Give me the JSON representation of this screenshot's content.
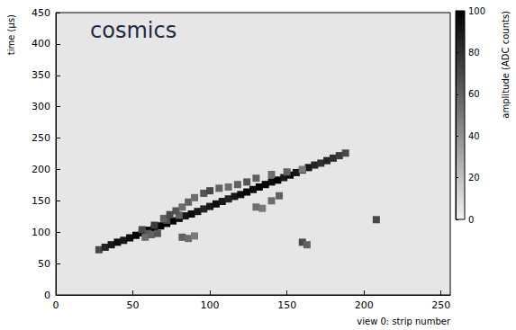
{
  "chart_data": {
    "type": "heatmap",
    "annotation": "cosmics",
    "x_label": "view 0: strip number",
    "y_label": "time (µs)",
    "xlim": [
      0,
      256
    ],
    "xticks": [
      0,
      50,
      100,
      150,
      200,
      250
    ],
    "ylim": [
      0,
      450
    ],
    "yticks": [
      0,
      50,
      100,
      150,
      200,
      250,
      300,
      350,
      400,
      450
    ],
    "marker": "square",
    "grid": false,
    "colorbar": {
      "label": "amplitude (ADC counts)",
      "range": [
        0,
        100
      ],
      "ticks": [
        0,
        20,
        40,
        60,
        80,
        100
      ]
    },
    "cells": [
      [
        28,
        72,
        70
      ],
      [
        32,
        76,
        85
      ],
      [
        36,
        80,
        90
      ],
      [
        40,
        84,
        95
      ],
      [
        44,
        87,
        90
      ],
      [
        48,
        91,
        95
      ],
      [
        52,
        95,
        100
      ],
      [
        56,
        99,
        100
      ],
      [
        60,
        103,
        100
      ],
      [
        64,
        106,
        100
      ],
      [
        68,
        110,
        100
      ],
      [
        72,
        114,
        100
      ],
      [
        76,
        118,
        100
      ],
      [
        80,
        122,
        95
      ],
      [
        84,
        126,
        90
      ],
      [
        88,
        129,
        95
      ],
      [
        92,
        133,
        90
      ],
      [
        96,
        137,
        85
      ],
      [
        100,
        141,
        90
      ],
      [
        104,
        145,
        95
      ],
      [
        108,
        149,
        90
      ],
      [
        112,
        153,
        85
      ],
      [
        116,
        157,
        90
      ],
      [
        120,
        160,
        95
      ],
      [
        124,
        164,
        100
      ],
      [
        128,
        168,
        95
      ],
      [
        132,
        172,
        100
      ],
      [
        136,
        176,
        100
      ],
      [
        140,
        180,
        95
      ],
      [
        144,
        183,
        100
      ],
      [
        148,
        187,
        90
      ],
      [
        152,
        191,
        95
      ],
      [
        156,
        195,
        90
      ],
      [
        160,
        199,
        85
      ],
      [
        164,
        203,
        90
      ],
      [
        168,
        207,
        85
      ],
      [
        172,
        210,
        80
      ],
      [
        176,
        214,
        85
      ],
      [
        180,
        218,
        80
      ],
      [
        184,
        222,
        75
      ],
      [
        188,
        226,
        70
      ],
      [
        56,
        104,
        70
      ],
      [
        60,
        98,
        65
      ],
      [
        64,
        111,
        75
      ],
      [
        72,
        119,
        70
      ],
      [
        80,
        127,
        60
      ],
      [
        58,
        92,
        55
      ],
      [
        62,
        96,
        60
      ],
      [
        66,
        98,
        65
      ],
      [
        70,
        122,
        60
      ],
      [
        74,
        128,
        70
      ],
      [
        78,
        134,
        65
      ],
      [
        82,
        140,
        55
      ],
      [
        86,
        148,
        60
      ],
      [
        90,
        155,
        55
      ],
      [
        96,
        162,
        65
      ],
      [
        100,
        166,
        70
      ],
      [
        106,
        170,
        60
      ],
      [
        112,
        172,
        55
      ],
      [
        118,
        176,
        60
      ],
      [
        124,
        180,
        65
      ],
      [
        130,
        186,
        60
      ],
      [
        140,
        192,
        55
      ],
      [
        150,
        196,
        60
      ],
      [
        160,
        200,
        50
      ],
      [
        82,
        92,
        60
      ],
      [
        86,
        90,
        55
      ],
      [
        90,
        94,
        50
      ],
      [
        130,
        140,
        55
      ],
      [
        134,
        138,
        50
      ],
      [
        140,
        150,
        55
      ],
      [
        145,
        158,
        60
      ],
      [
        160,
        84,
        70
      ],
      [
        163,
        80,
        60
      ],
      [
        208,
        120,
        70
      ]
    ]
  }
}
